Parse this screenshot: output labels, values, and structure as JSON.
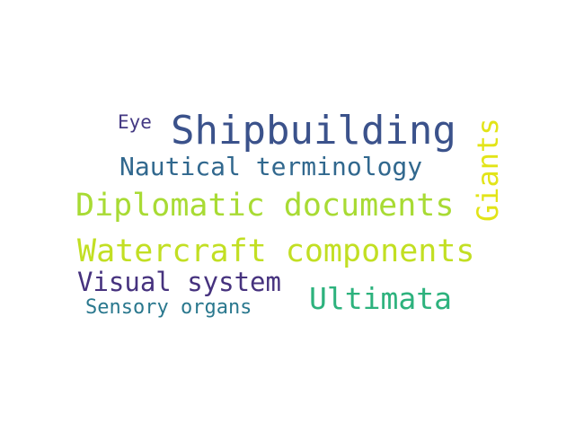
{
  "words": [
    {
      "text": "Shipbuilding",
      "color": "#3b528b"
    },
    {
      "text": "Eye",
      "color": "#443983"
    },
    {
      "text": "Nautical terminology",
      "color": "#31688e"
    },
    {
      "text": "Diplomatic documents",
      "color": "#a8db34"
    },
    {
      "text": "Giants",
      "color": "#e2e418"
    },
    {
      "text": "Watercraft components",
      "color": "#c2df23"
    },
    {
      "text": "Visual system",
      "color": "#46327e"
    },
    {
      "text": "Ultimata",
      "color": "#2db27d"
    },
    {
      "text": "Sensory organs",
      "color": "#2a788e"
    }
  ]
}
